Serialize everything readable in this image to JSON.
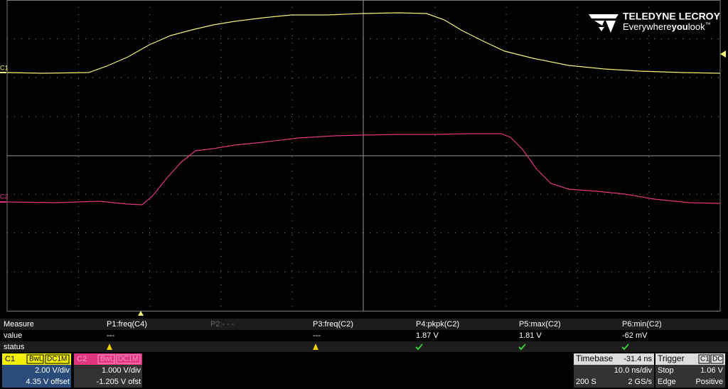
{
  "logo": {
    "brand": "TELEDYNE LECROY",
    "tagline": [
      "Everywhere",
      "you",
      "look"
    ],
    "mark": "™"
  },
  "trace_markers": {
    "c1": "C1",
    "c2": "C2"
  },
  "measure": {
    "header": {
      "label": "Measure",
      "p1": "P1:freq(C4)",
      "p2": "P2:- - -",
      "p3": "P3:freq(C2)",
      "p4": "P4:pkpk(C2)",
      "p5": "P5:max(C2)",
      "p6": "P6:min(C2)"
    },
    "value": {
      "label": "value",
      "p1": "---",
      "p3": "---",
      "p4": "1.87 V",
      "p5": "1.81 V",
      "p6": "-62 mV"
    },
    "status": {
      "label": "status"
    }
  },
  "channels": [
    {
      "label": "C1",
      "bwl": "BwL",
      "coupling": "DC1M",
      "scale": "2.00 V/div",
      "offset": "4.35 V offset"
    },
    {
      "label": "C2",
      "bwl": "BwL",
      "coupling": "DC1M",
      "scale": "1.000 V/div",
      "offset": "-1.205 V ofst"
    }
  ],
  "timebase": {
    "label": "Timebase",
    "delay": "-31.4 ns",
    "scale": "10.0 ns/div",
    "samples": "200 S",
    "rate": "2 GS/s"
  },
  "trigger": {
    "label": "Trigger",
    "source": "C1",
    "coupling": "DC",
    "mode": "Stop",
    "level": "1.06 V",
    "type": "Edge",
    "slope": "Positive"
  }
}
